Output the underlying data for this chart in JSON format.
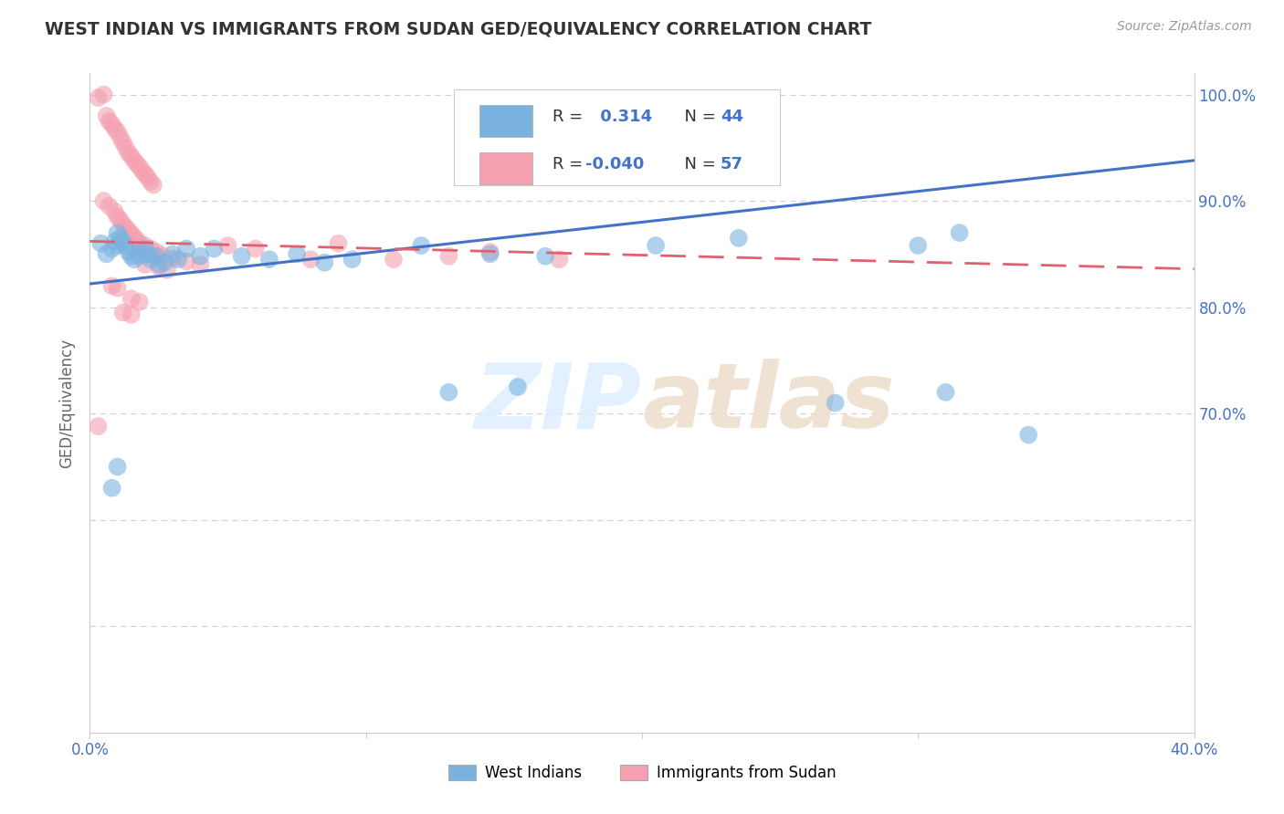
{
  "title": "WEST INDIAN VS IMMIGRANTS FROM SUDAN GED/EQUIVALENCY CORRELATION CHART",
  "source": "Source: ZipAtlas.com",
  "ylabel": "GED/Equivalency",
  "xlim": [
    0.0,
    0.4
  ],
  "ylim": [
    0.4,
    1.02
  ],
  "xtick_positions": [
    0.0,
    0.1,
    0.2,
    0.3,
    0.4
  ],
  "xtick_labels": [
    "0.0%",
    "",
    "",
    "",
    "40.0%"
  ],
  "ytick_positions": [
    0.4,
    0.5,
    0.6,
    0.7,
    0.8,
    0.9,
    1.0
  ],
  "ytick_labels": [
    "",
    "",
    "",
    "70.0%",
    "80.0%",
    "90.0%",
    "100.0%"
  ],
  "blue_r": 0.314,
  "blue_n": 44,
  "pink_r": -0.04,
  "pink_n": 57,
  "blue_color": "#7ab3e0",
  "pink_color": "#f4a0b0",
  "blue_line_color": "#4472c4",
  "pink_line_color": "#e06070",
  "blue_line": [
    [
      0.0,
      0.822
    ],
    [
      0.4,
      0.938
    ]
  ],
  "pink_line": [
    [
      0.0,
      0.862
    ],
    [
      0.4,
      0.836
    ]
  ],
  "blue_scatter": [
    [
      0.004,
      0.86
    ],
    [
      0.006,
      0.85
    ],
    [
      0.008,
      0.855
    ],
    [
      0.009,
      0.862
    ],
    [
      0.01,
      0.87
    ],
    [
      0.01,
      0.858
    ],
    [
      0.011,
      0.865
    ],
    [
      0.012,
      0.862
    ],
    [
      0.013,
      0.858
    ],
    [
      0.014,
      0.852
    ],
    [
      0.015,
      0.848
    ],
    [
      0.016,
      0.845
    ],
    [
      0.017,
      0.853
    ],
    [
      0.018,
      0.848
    ],
    [
      0.02,
      0.855
    ],
    [
      0.021,
      0.85
    ],
    [
      0.022,
      0.845
    ],
    [
      0.024,
      0.848
    ],
    [
      0.025,
      0.84
    ],
    [
      0.027,
      0.842
    ],
    [
      0.03,
      0.85
    ],
    [
      0.032,
      0.845
    ],
    [
      0.035,
      0.855
    ],
    [
      0.04,
      0.848
    ],
    [
      0.045,
      0.855
    ],
    [
      0.055,
      0.848
    ],
    [
      0.065,
      0.845
    ],
    [
      0.075,
      0.85
    ],
    [
      0.085,
      0.842
    ],
    [
      0.095,
      0.845
    ],
    [
      0.12,
      0.858
    ],
    [
      0.145,
      0.85
    ],
    [
      0.165,
      0.848
    ],
    [
      0.205,
      0.858
    ],
    [
      0.235,
      0.865
    ],
    [
      0.3,
      0.858
    ],
    [
      0.315,
      0.87
    ],
    [
      0.008,
      0.63
    ],
    [
      0.01,
      0.65
    ],
    [
      0.13,
      0.72
    ],
    [
      0.155,
      0.725
    ],
    [
      0.27,
      0.71
    ],
    [
      0.31,
      0.72
    ],
    [
      0.34,
      0.68
    ]
  ],
  "pink_scatter": [
    [
      0.003,
      0.997
    ],
    [
      0.005,
      1.0
    ],
    [
      0.006,
      0.98
    ],
    [
      0.007,
      0.975
    ],
    [
      0.008,
      0.972
    ],
    [
      0.009,
      0.968
    ],
    [
      0.01,
      0.965
    ],
    [
      0.011,
      0.96
    ],
    [
      0.012,
      0.955
    ],
    [
      0.013,
      0.95
    ],
    [
      0.014,
      0.945
    ],
    [
      0.015,
      0.942
    ],
    [
      0.016,
      0.938
    ],
    [
      0.017,
      0.935
    ],
    [
      0.018,
      0.932
    ],
    [
      0.019,
      0.928
    ],
    [
      0.02,
      0.925
    ],
    [
      0.021,
      0.922
    ],
    [
      0.022,
      0.918
    ],
    [
      0.023,
      0.915
    ],
    [
      0.005,
      0.9
    ],
    [
      0.007,
      0.895
    ],
    [
      0.009,
      0.89
    ],
    [
      0.01,
      0.885
    ],
    [
      0.011,
      0.882
    ],
    [
      0.012,
      0.878
    ],
    [
      0.013,
      0.875
    ],
    [
      0.014,
      0.872
    ],
    [
      0.015,
      0.869
    ],
    [
      0.016,
      0.866
    ],
    [
      0.017,
      0.863
    ],
    [
      0.018,
      0.86
    ],
    [
      0.02,
      0.858
    ],
    [
      0.022,
      0.855
    ],
    [
      0.024,
      0.852
    ],
    [
      0.026,
      0.849
    ],
    [
      0.03,
      0.846
    ],
    [
      0.035,
      0.843
    ],
    [
      0.04,
      0.84
    ],
    [
      0.05,
      0.858
    ],
    [
      0.06,
      0.855
    ],
    [
      0.08,
      0.845
    ],
    [
      0.09,
      0.86
    ],
    [
      0.11,
      0.845
    ],
    [
      0.13,
      0.848
    ],
    [
      0.145,
      0.852
    ],
    [
      0.17,
      0.845
    ],
    [
      0.02,
      0.84
    ],
    [
      0.025,
      0.838
    ],
    [
      0.028,
      0.835
    ],
    [
      0.008,
      0.82
    ],
    [
      0.01,
      0.818
    ],
    [
      0.015,
      0.808
    ],
    [
      0.018,
      0.805
    ],
    [
      0.012,
      0.795
    ],
    [
      0.015,
      0.793
    ],
    [
      0.003,
      0.688
    ]
  ],
  "background_color": "#ffffff",
  "grid_color": "#cccccc",
  "title_color": "#333333",
  "label_color": "#666666",
  "tick_color": "#4472c4",
  "source_color": "#999999",
  "watermark_text": "ZIP",
  "watermark_text2": "atlas"
}
